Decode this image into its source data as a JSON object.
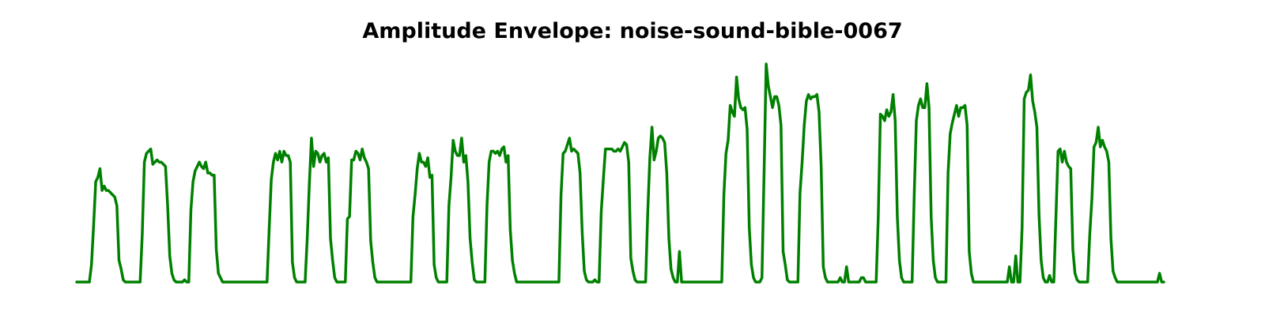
{
  "chart_data": {
    "type": "line",
    "title": "Amplitude Envelope: noise-sound-bible-0067",
    "xlabel": "",
    "ylabel": "",
    "axes_visible": false,
    "grid": false,
    "line_color": "#008000",
    "xlim": [
      0,
      1
    ],
    "ylim": [
      0,
      1
    ],
    "series": [
      {
        "values": [
          0.0,
          0.0,
          0.0,
          0.0,
          0.0,
          0.0,
          0.0,
          0.08,
          0.26,
          0.46,
          0.48,
          0.52,
          0.42,
          0.44,
          0.42,
          0.42,
          0.41,
          0.4,
          0.39,
          0.35,
          0.1,
          0.06,
          0.01,
          0.0,
          0.0,
          0.0,
          0.0,
          0.0,
          0.0,
          0.0,
          0.0,
          0.22,
          0.55,
          0.59,
          0.6,
          0.61,
          0.54,
          0.55,
          0.56,
          0.55,
          0.55,
          0.54,
          0.53,
          0.35,
          0.12,
          0.04,
          0.01,
          0.0,
          0.0,
          0.0,
          0.0,
          0.01,
          0.0,
          0.0,
          0.33,
          0.46,
          0.51,
          0.53,
          0.55,
          0.53,
          0.52,
          0.55,
          0.5,
          0.5,
          0.49,
          0.49,
          0.15,
          0.04,
          0.02,
          0.0,
          0.0,
          0.0,
          0.0,
          0.0,
          0.0,
          0.0,
          0.0,
          0.0,
          0.0,
          0.0,
          0.0,
          0.0,
          0.0,
          0.0,
          0.0,
          0.0,
          0.0,
          0.0,
          0.0,
          0.0,
          0.0,
          0.24,
          0.47,
          0.55,
          0.59,
          0.56,
          0.6,
          0.55,
          0.6,
          0.58,
          0.58,
          0.55,
          0.09,
          0.02,
          0.0,
          0.0,
          0.0,
          0.0,
          0.0,
          0.2,
          0.45,
          0.66,
          0.53,
          0.6,
          0.59,
          0.55,
          0.58,
          0.59,
          0.55,
          0.57,
          0.2,
          0.1,
          0.02,
          0.0,
          0.0,
          0.0,
          0.0,
          0.0,
          0.29,
          0.3,
          0.56,
          0.56,
          0.6,
          0.59,
          0.56,
          0.61,
          0.57,
          0.55,
          0.52,
          0.19,
          0.09,
          0.02,
          0.0,
          0.0,
          0.0,
          0.0,
          0.0,
          0.0,
          0.0,
          0.0,
          0.0,
          0.0,
          0.0,
          0.0,
          0.0,
          0.0,
          0.0,
          0.0,
          0.0,
          0.3,
          0.4,
          0.52,
          0.59,
          0.55,
          0.55,
          0.53,
          0.57,
          0.48,
          0.49,
          0.08,
          0.02,
          0.0,
          0.0,
          0.0,
          0.0,
          0.0,
          0.35,
          0.48,
          0.65,
          0.6,
          0.58,
          0.58,
          0.66,
          0.55,
          0.58,
          0.46,
          0.2,
          0.09,
          0.01,
          0.0,
          0.0,
          0.0,
          0.0,
          0.0,
          0.35,
          0.55,
          0.6,
          0.6,
          0.59,
          0.6,
          0.58,
          0.61,
          0.62,
          0.55,
          0.58,
          0.24,
          0.1,
          0.04,
          0.0,
          0.0,
          0.0,
          0.0,
          0.0,
          0.0,
          0.0,
          0.0,
          0.0,
          0.0,
          0.0,
          0.0,
          0.0,
          0.0,
          0.0,
          0.0,
          0.0,
          0.0,
          0.0,
          0.0,
          0.0,
          0.4,
          0.59,
          0.6,
          0.63,
          0.66,
          0.6,
          0.61,
          0.6,
          0.59,
          0.5,
          0.23,
          0.05,
          0.01,
          0.0,
          0.0,
          0.0,
          0.01,
          0.0,
          0.0,
          0.32,
          0.47,
          0.61,
          0.61,
          0.61,
          0.61,
          0.6,
          0.6,
          0.61,
          0.6,
          0.62,
          0.64,
          0.63,
          0.55,
          0.11,
          0.05,
          0.01,
          0.0,
          0.0,
          0.0,
          0.0,
          0.0,
          0.32,
          0.57,
          0.71,
          0.56,
          0.6,
          0.66,
          0.67,
          0.66,
          0.64,
          0.5,
          0.2,
          0.06,
          0.02,
          0.0,
          0.0,
          0.14,
          0.0,
          0.0,
          0.0,
          0.0,
          0.0,
          0.0,
          0.0,
          0.0,
          0.0,
          0.0,
          0.0,
          0.0,
          0.0,
          0.0,
          0.0,
          0.0,
          0.0,
          0.0,
          0.0,
          0.0,
          0.4,
          0.59,
          0.65,
          0.81,
          0.78,
          0.76,
          0.94,
          0.84,
          0.8,
          0.79,
          0.8,
          0.7,
          0.25,
          0.08,
          0.02,
          0.0,
          0.0,
          0.0,
          0.02,
          0.5,
          1.0,
          0.9,
          0.85,
          0.8,
          0.85,
          0.85,
          0.81,
          0.72,
          0.14,
          0.08,
          0.01,
          0.0,
          0.0,
          0.0,
          0.0,
          0.0,
          0.41,
          0.55,
          0.72,
          0.83,
          0.86,
          0.84,
          0.85,
          0.85,
          0.86,
          0.78,
          0.53,
          0.07,
          0.02,
          0.0,
          0.0,
          0.0,
          0.0,
          0.0,
          0.0,
          0.02,
          0.0,
          0.0,
          0.07,
          0.0,
          0.0,
          0.0,
          0.0,
          0.0,
          0.0,
          0.02,
          0.02,
          0.0,
          0.0,
          0.0,
          0.0,
          0.0,
          0.0,
          0.3,
          0.77,
          0.76,
          0.74,
          0.79,
          0.76,
          0.78,
          0.86,
          0.74,
          0.3,
          0.1,
          0.02,
          0.0,
          0.0,
          0.0,
          0.0,
          0.0,
          0.4,
          0.74,
          0.81,
          0.84,
          0.8,
          0.8,
          0.91,
          0.8,
          0.3,
          0.1,
          0.02,
          0.0,
          0.0,
          0.0,
          0.0,
          0.0,
          0.5,
          0.68,
          0.73,
          0.77,
          0.81,
          0.76,
          0.8,
          0.8,
          0.81,
          0.72,
          0.14,
          0.04,
          0.0,
          0.0,
          0.0,
          0.0,
          0.0,
          0.0,
          0.0,
          0.0,
          0.0,
          0.0,
          0.0,
          0.0,
          0.0,
          0.0,
          0.0,
          0.0,
          0.0,
          0.07,
          0.0,
          0.0,
          0.12,
          0.0,
          0.0,
          0.25,
          0.84,
          0.87,
          0.88,
          0.95,
          0.83,
          0.78,
          0.71,
          0.31,
          0.1,
          0.02,
          0.0,
          0.0,
          0.03,
          0.0,
          0.0,
          0.3,
          0.6,
          0.61,
          0.55,
          0.6,
          0.55,
          0.53,
          0.52,
          0.15,
          0.04,
          0.01,
          0.0,
          0.0,
          0.0,
          0.0,
          0.0,
          0.22,
          0.38,
          0.62,
          0.64,
          0.71,
          0.62,
          0.65,
          0.62,
          0.6,
          0.55,
          0.2,
          0.05,
          0.02,
          0.0,
          0.0,
          0.0,
          0.0,
          0.0,
          0.0,
          0.0,
          0.0,
          0.0,
          0.0,
          0.0,
          0.0,
          0.0,
          0.0,
          0.0,
          0.0,
          0.0,
          0.0,
          0.0,
          0.0,
          0.04,
          0.0,
          0.0
        ]
      }
    ]
  }
}
